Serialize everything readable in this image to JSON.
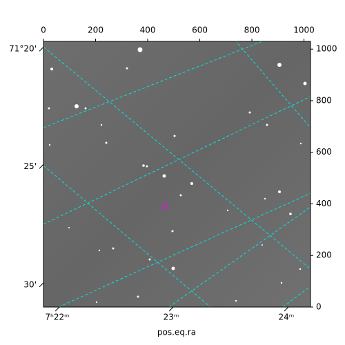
{
  "chart_data": {
    "type": "image",
    "xlabel": "pos.eq.ra",
    "xlim": [
      0,
      1025
    ],
    "ylim": [
      0,
      1030
    ],
    "xticks": [
      0,
      200,
      400,
      600,
      800,
      1000
    ],
    "yticks": [
      0,
      200,
      400,
      600,
      800,
      1000
    ],
    "wcs_xticks": [
      {
        "value": 53,
        "label": "7ʰ22ᵐ"
      },
      {
        "value": 490,
        "label": "23ᵐ"
      },
      {
        "value": 932,
        "label": "24ᵐ"
      }
    ],
    "wcs_yticks": [
      {
        "value": 1000,
        "label": "71°20'"
      },
      {
        "value": 545,
        "label": "25'"
      },
      {
        "value": 86,
        "label": "30'"
      }
    ],
    "grid_color": "#00e5e5",
    "marker_color": "#cc22cc"
  }
}
